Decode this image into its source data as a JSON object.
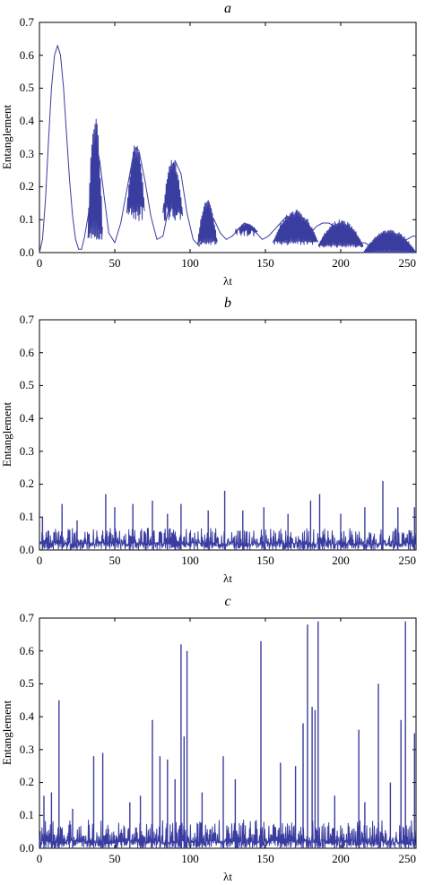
{
  "chart_data": [
    {
      "type": "line",
      "title": "a",
      "xlabel": "λt",
      "ylabel": "Entanglement",
      "xlim": [
        0,
        250
      ],
      "ylim": [
        0,
        0.7
      ],
      "xticks": [
        "0",
        "50",
        "100",
        "150",
        "200",
        "250"
      ],
      "yticks": [
        "0.0",
        "0.1",
        "0.2",
        "0.3",
        "0.4",
        "0.5",
        "0.6",
        "0.7"
      ],
      "grid": false,
      "series_color": "#3a3da0",
      "series": [
        {
          "x": [
            0,
            2,
            4,
            6,
            8,
            10,
            12,
            14,
            16,
            18,
            20,
            22,
            24,
            26,
            28,
            30,
            33,
            36,
            38,
            40,
            43,
            46,
            50,
            54,
            58,
            62,
            64,
            66,
            70,
            74,
            78,
            82,
            86,
            88,
            90,
            94,
            98,
            102,
            106,
            110,
            113,
            116,
            120,
            124,
            128,
            132,
            136,
            140,
            144,
            148,
            152,
            156,
            160,
            164,
            168,
            172,
            176,
            180,
            184,
            188,
            192,
            196,
            200,
            204,
            208,
            212,
            216,
            220,
            224,
            228,
            232,
            236,
            240,
            244,
            248,
            250
          ],
          "y": [
            0.0,
            0.04,
            0.16,
            0.34,
            0.5,
            0.6,
            0.63,
            0.6,
            0.5,
            0.36,
            0.22,
            0.11,
            0.04,
            0.01,
            0.01,
            0.05,
            0.13,
            0.25,
            0.32,
            0.28,
            0.17,
            0.06,
            0.03,
            0.09,
            0.19,
            0.29,
            0.32,
            0.31,
            0.22,
            0.11,
            0.04,
            0.05,
            0.14,
            0.22,
            0.28,
            0.24,
            0.12,
            0.04,
            0.02,
            0.06,
            0.11,
            0.1,
            0.06,
            0.04,
            0.05,
            0.07,
            0.09,
            0.08,
            0.06,
            0.04,
            0.05,
            0.07,
            0.09,
            0.11,
            0.1,
            0.07,
            0.05,
            0.06,
            0.08,
            0.09,
            0.09,
            0.08,
            0.07,
            0.05,
            0.04,
            0.03,
            0.03,
            0.02,
            0.02,
            0.02,
            0.02,
            0.03,
            0.03,
            0.04,
            0.05,
            0.05
          ],
          "oscillation": [
            {
              "from": 32,
              "to": 42,
              "max": 0.43,
              "min": 0.05
            },
            {
              "from": 58,
              "to": 70,
              "max": 0.34,
              "min": 0.12
            },
            {
              "from": 82,
              "to": 95,
              "max": 0.29,
              "min": 0.12
            },
            {
              "from": 105,
              "to": 118,
              "max": 0.16,
              "min": 0.03
            },
            {
              "from": 130,
              "to": 145,
              "max": 0.09,
              "min": 0.06
            },
            {
              "from": 155,
              "to": 185,
              "max": 0.13,
              "min": 0.03
            },
            {
              "from": 185,
              "to": 215,
              "max": 0.1,
              "min": 0.02
            },
            {
              "from": 215,
              "to": 250,
              "max": 0.07,
              "min": 0.0
            }
          ]
        }
      ]
    },
    {
      "type": "line",
      "title": "b",
      "xlabel": "λt",
      "ylabel": "Entanglement",
      "xlim": [
        0,
        250
      ],
      "ylim": [
        0,
        0.7
      ],
      "xticks": [
        "0",
        "50",
        "100",
        "150",
        "200",
        "250"
      ],
      "yticks": [
        "0.0",
        "0.1",
        "0.2",
        "0.3",
        "0.4",
        "0.5",
        "0.6",
        "0.7"
      ],
      "grid": false,
      "series_color": "#3a3da0",
      "series": [
        {
          "baseline": 0.04,
          "noise_amplitude": 0.05,
          "peaks": [
            {
              "x": 2,
              "y": 0.1
            },
            {
              "x": 15,
              "y": 0.14
            },
            {
              "x": 25,
              "y": 0.09
            },
            {
              "x": 44,
              "y": 0.17
            },
            {
              "x": 50,
              "y": 0.13
            },
            {
              "x": 62,
              "y": 0.14
            },
            {
              "x": 75,
              "y": 0.15
            },
            {
              "x": 85,
              "y": 0.11
            },
            {
              "x": 94,
              "y": 0.14
            },
            {
              "x": 112,
              "y": 0.12
            },
            {
              "x": 123,
              "y": 0.18
            },
            {
              "x": 135,
              "y": 0.12
            },
            {
              "x": 149,
              "y": 0.13
            },
            {
              "x": 165,
              "y": 0.11
            },
            {
              "x": 180,
              "y": 0.15
            },
            {
              "x": 186,
              "y": 0.17
            },
            {
              "x": 200,
              "y": 0.11
            },
            {
              "x": 216,
              "y": 0.13
            },
            {
              "x": 228,
              "y": 0.21
            },
            {
              "x": 238,
              "y": 0.13
            },
            {
              "x": 249,
              "y": 0.13
            }
          ]
        }
      ]
    },
    {
      "type": "line",
      "title": "c",
      "xlabel": "λt",
      "ylabel": "Entanglement",
      "xlim": [
        0,
        250
      ],
      "ylim": [
        0,
        0.7
      ],
      "xticks": [
        "0",
        "50",
        "100",
        "150",
        "200",
        "250"
      ],
      "yticks": [
        "0.0",
        "0.1",
        "0.2",
        "0.3",
        "0.4",
        "0.5",
        "0.6",
        "0.7"
      ],
      "grid": false,
      "series_color": "#3a3da0",
      "series": [
        {
          "baseline": 0.04,
          "noise_amplitude": 0.07,
          "peaks": [
            {
              "x": 3,
              "y": 0.16
            },
            {
              "x": 8,
              "y": 0.17
            },
            {
              "x": 13,
              "y": 0.45
            },
            {
              "x": 22,
              "y": 0.12
            },
            {
              "x": 36,
              "y": 0.28
            },
            {
              "x": 42,
              "y": 0.29
            },
            {
              "x": 60,
              "y": 0.14
            },
            {
              "x": 67,
              "y": 0.16
            },
            {
              "x": 75,
              "y": 0.39
            },
            {
              "x": 80,
              "y": 0.28
            },
            {
              "x": 85,
              "y": 0.27
            },
            {
              "x": 90,
              "y": 0.21
            },
            {
              "x": 94,
              "y": 0.62
            },
            {
              "x": 96,
              "y": 0.34
            },
            {
              "x": 98,
              "y": 0.6
            },
            {
              "x": 108,
              "y": 0.17
            },
            {
              "x": 122,
              "y": 0.28
            },
            {
              "x": 130,
              "y": 0.21
            },
            {
              "x": 147,
              "y": 0.63
            },
            {
              "x": 160,
              "y": 0.26
            },
            {
              "x": 170,
              "y": 0.25
            },
            {
              "x": 175,
              "y": 0.38
            },
            {
              "x": 178,
              "y": 0.68
            },
            {
              "x": 181,
              "y": 0.43
            },
            {
              "x": 183,
              "y": 0.42
            },
            {
              "x": 185,
              "y": 0.69
            },
            {
              "x": 196,
              "y": 0.16
            },
            {
              "x": 212,
              "y": 0.36
            },
            {
              "x": 216,
              "y": 0.14
            },
            {
              "x": 225,
              "y": 0.5
            },
            {
              "x": 233,
              "y": 0.2
            },
            {
              "x": 240,
              "y": 0.39
            },
            {
              "x": 243,
              "y": 0.69
            },
            {
              "x": 249,
              "y": 0.35
            }
          ]
        }
      ]
    }
  ]
}
